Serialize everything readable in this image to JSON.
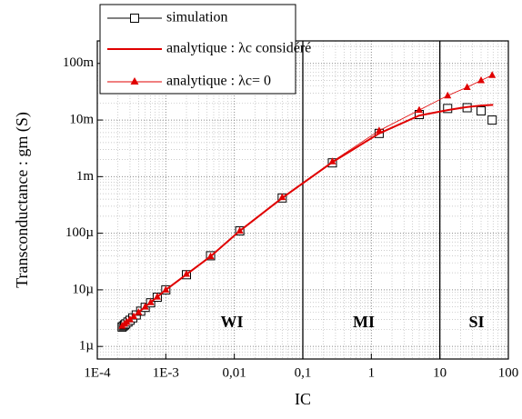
{
  "chart_data": {
    "type": "line",
    "x_label": "IC",
    "y_label": "Transconductance : gm (S)",
    "xscale": "log",
    "yscale": "log",
    "grid": true,
    "xlim": [
      0.0001,
      100
    ],
    "ylim": [
      6e-07,
      0.25
    ],
    "xticks": [
      {
        "value": 0.0001,
        "label": "1E-4"
      },
      {
        "value": 0.001,
        "label": "1E-3"
      },
      {
        "value": 0.01,
        "label": "0,01"
      },
      {
        "value": 0.1,
        "label": "0,1"
      },
      1,
      10,
      100
    ],
    "yticks": [
      {
        "value": 1e-06,
        "label": "1µ"
      },
      {
        "value": 1e-05,
        "label": "10µ"
      },
      {
        "value": 0.0001,
        "label": "100µ"
      },
      {
        "value": 0.001,
        "label": "1m"
      },
      {
        "value": 0.01,
        "label": "10m"
      },
      {
        "value": 0.1,
        "label": "100m"
      }
    ],
    "region_bounds": [
      0.1,
      10
    ],
    "annotations": [
      "WI",
      "MI",
      "SI"
    ],
    "legend": "upper left",
    "series": [
      {
        "name": "simulation",
        "color": "#000000",
        "marker": "square",
        "x": [
          0.00023,
          0.00024,
          0.00025,
          0.00026,
          0.00028,
          0.0003,
          0.00033,
          0.00037,
          0.00043,
          0.0005,
          0.0006,
          0.00075,
          0.001,
          0.002,
          0.0045,
          0.012,
          0.05,
          0.27,
          1.3,
          5,
          13,
          25,
          40,
          58
        ],
        "values": [
          2.2e-06,
          2.3e-06,
          2.4e-06,
          2.5e-06,
          2.7e-06,
          2.9e-06,
          3.2e-06,
          3.6e-06,
          4.2e-06,
          4.9e-06,
          5.9e-06,
          7.4e-06,
          1e-05,
          1.85e-05,
          4e-05,
          0.00011,
          0.00042,
          0.00175,
          0.0058,
          0.0125,
          0.016,
          0.0165,
          0.0145,
          0.01
        ]
      },
      {
        "name": "analytique : λc considéré",
        "color": "#e00000",
        "marker": "none",
        "x": [
          0.00023,
          0.0005,
          0.001,
          0.0045,
          0.012,
          0.05,
          0.27,
          1.3,
          5,
          13,
          25,
          40,
          60
        ],
        "values": [
          2.3e-06,
          5e-06,
          1e-05,
          3.9e-05,
          0.00011,
          0.00042,
          0.0018,
          0.0058,
          0.012,
          0.015,
          0.017,
          0.018,
          0.0185
        ]
      },
      {
        "name": "analytique : λc= 0",
        "color": "#e00000",
        "marker": "triangle",
        "x": [
          0.00023,
          0.00025,
          0.00027,
          0.0003,
          0.00034,
          0.0004,
          0.0005,
          0.0006,
          0.00075,
          0.001,
          0.002,
          0.0045,
          0.012,
          0.05,
          0.27,
          1.3,
          5,
          13,
          25,
          40,
          58
        ],
        "values": [
          2.3e-06,
          2.5e-06,
          2.7e-06,
          3e-06,
          3.4e-06,
          4e-06,
          5e-06,
          6e-06,
          7.5e-06,
          1e-05,
          1.9e-05,
          3.9e-05,
          0.00011,
          0.00043,
          0.00185,
          0.0065,
          0.015,
          0.027,
          0.038,
          0.05,
          0.062
        ]
      }
    ]
  }
}
